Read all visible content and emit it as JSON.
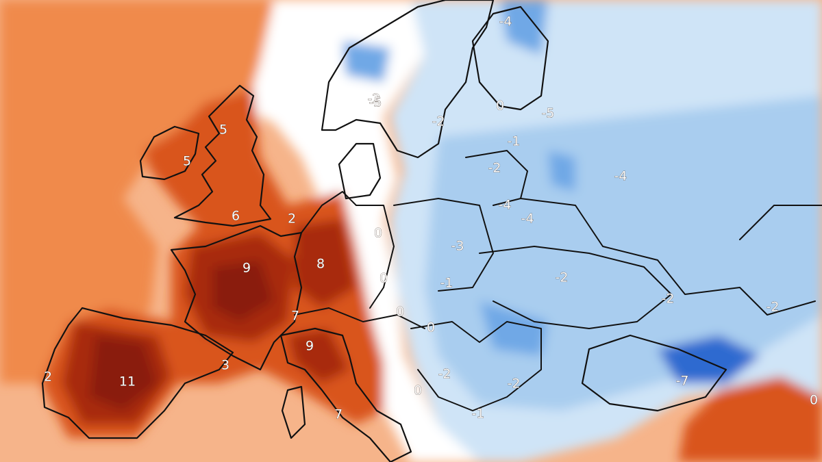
{
  "map": {
    "colors": {
      "warm_light": "#f6b48a",
      "warm_mid": "#f08a4b",
      "warm_strong": "#d9541f",
      "warm_deep": "#a82c0c",
      "warm_max": "#8a1a08",
      "neutral": "#ffffff",
      "cold_light": "#cfe4f7",
      "cold_mid": "#a9cdef",
      "cold_strong": "#6fa8e6",
      "cold_deep": "#2f6ad0"
    },
    "labels": [
      "5",
      "5",
      "6",
      "2",
      "9",
      "8",
      "7",
      "9",
      "3",
      "11",
      "2",
      "7",
      "0",
      "0",
      "0",
      "0",
      "0",
      "-3",
      "-1",
      "-2",
      "-4",
      "-4",
      "-2",
      "-1",
      "-2",
      "-5",
      "0",
      "-5",
      "-4",
      "-2",
      "-2",
      "-7",
      "-2",
      "-2",
      "-1",
      "-4",
      "-2",
      "0"
    ]
  }
}
